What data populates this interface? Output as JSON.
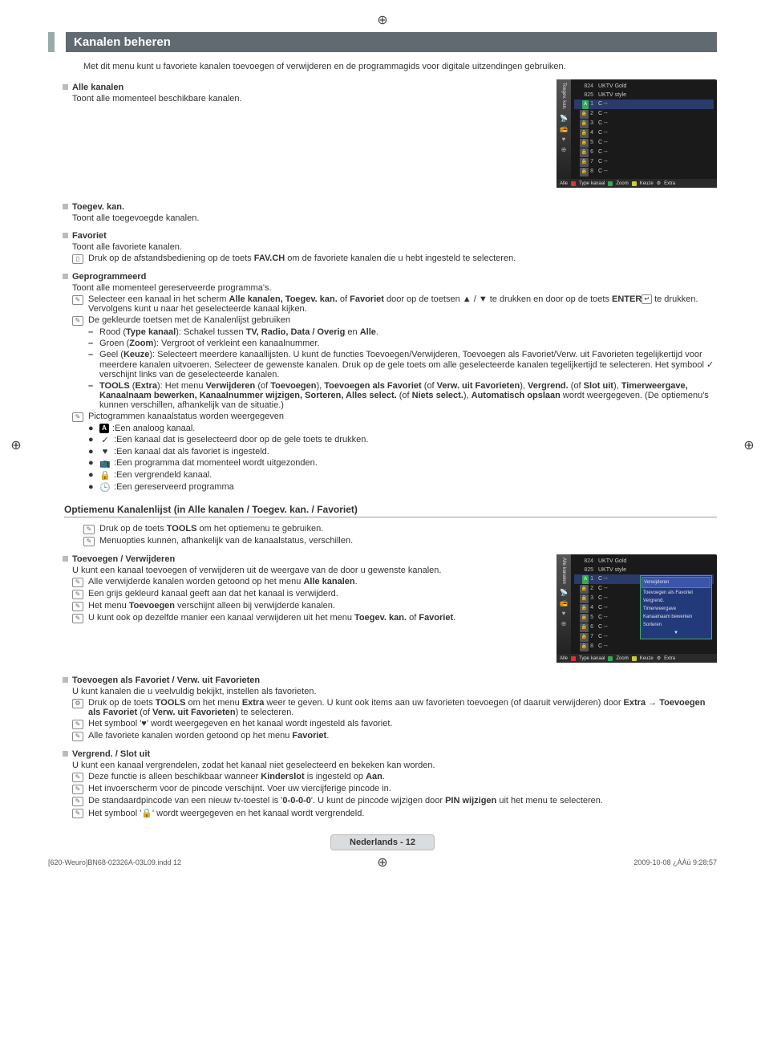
{
  "crosshair_glyph": "⊕",
  "heading": "Kanalen beheren",
  "intro": "Met dit menu kunt u favoriete kanalen toevoegen of verwijderen en de programmagids voor digitale uitzendingen gebruiken.",
  "sections": {
    "alle": {
      "title": "Alle kanalen",
      "body": "Toont alle momenteel beschikbare kanalen."
    },
    "toegev": {
      "title": "Toegev. kan.",
      "body": "Toont alle toegevoegde kanalen."
    },
    "favoriet": {
      "title": "Favoriet",
      "body": "Toont alle favoriete kanalen.",
      "remote_prefix": "Druk op de afstandsbediening op de toets ",
      "remote_bold": "FAV.CH",
      "remote_suffix": " om de favoriete kanalen die u hebt ingesteld te selecteren."
    },
    "geprog": {
      "title": "Geprogrammeerd",
      "body": "Toont alle momenteel gereserveerde programma's.",
      "note1_a": "Selecteer een kanaal in het scherm ",
      "note1_b": "Alle kanalen, Toegev. kan.",
      "note1_c": " of ",
      "note1_d": "Favoriet",
      "note1_e": " door op de toetsen ▲ / ▼ te drukken en door op de toets ",
      "note1_f": "ENTER",
      "note1_g": " te drukken. Vervolgens kunt u naar het geselecteerde kanaal kijken.",
      "note2": "De gekleurde toetsen met de Kanalenlijst gebruiken",
      "color": {
        "red_a": "Rood (",
        "red_b": "Type kanaal",
        "red_c": "): Schakel tussen ",
        "red_d": "TV, Radio, Data / Overig",
        "red_e": " en ",
        "red_f": "Alle",
        "red_g": ".",
        "green_a": "Groen (",
        "green_b": "Zoom",
        "green_c": "): Vergroot of verkleint een kanaalnummer.",
        "yellow_a": "Geel (",
        "yellow_b": "Keuze",
        "yellow_c": "): Selecteert meerdere kanaallijsten. U kunt de functies Toevoegen/Verwijderen, Toevoegen als Favoriet/Verw. uit Favorieten tegelijkertijd voor meerdere kanalen uitvoeren. Selecteer de gewenste kanalen. Druk op de gele toets om alle geselecteerde kanalen tegelijkertijd te selecteren. Het symbool ✓ verschijnt links van de geselecteerde kanalen.",
        "tools_a": "TOOLS",
        "tools_b": " (",
        "tools_c": "Extra",
        "tools_d": "): Het menu ",
        "tools_e": "Verwijderen",
        "tools_f": " (of ",
        "tools_g": "Toevoegen",
        "tools_h": "), ",
        "tools_i": "Toevoegen als Favoriet",
        "tools_j": " (of ",
        "tools_k": "Verw. uit Favorieten",
        "tools_l": "), ",
        "tools_m": "Vergrend.",
        "tools_n": " (of ",
        "tools_o": "Slot uit",
        "tools_p": "), ",
        "tools_q": "Timerweergave, Kanaalnaam bewerken, Kanaalnummer wijzigen, Sorteren, Alles select.",
        "tools_r": " (of ",
        "tools_s": "Niets select.",
        "tools_t": "), ",
        "tools_u": "Automatisch opslaan",
        "tools_v": " wordt weergegeven. (De optiemenu's kunnen verschillen, afhankelijk van de situatie.)"
      },
      "note3": "Pictogrammen kanaalstatus worden weergegeven",
      "icons": {
        "a": "Een analoog kanaal.",
        "check": "Een kanaal dat is geselecteerd door op de gele toets te drukken.",
        "heart": "Een kanaal dat als favoriet is ingesteld.",
        "broadcast": "Een programma dat momenteel wordt uitgezonden.",
        "lock": "Een vergrendeld kanaal.",
        "clock": "Een gereserveerd programma"
      }
    }
  },
  "option_heading": "Optiemenu Kanalenlijst (in Alle kanalen / Toegev. kan. / Favoriet)",
  "opt_notes": {
    "a_pre": "Druk op de toets ",
    "a_bold": "TOOLS",
    "a_post": " om het optiemenu te gebruiken.",
    "b": "Menuopties kunnen, afhankelijk van de kanaalstatus, verschillen."
  },
  "toevoegen_verw": {
    "title": "Toevoegen / Verwijderen",
    "body": "U kunt een kanaal toevoegen of verwijderen uit de weergave van de door u gewenste kanalen.",
    "n1_a": "Alle verwijderde kanalen worden getoond op het menu ",
    "n1_b": "Alle kanalen",
    "n1_c": ".",
    "n2": "Een grijs gekleurd kanaal geeft aan dat het kanaal is verwijderd.",
    "n3_a": "Het menu ",
    "n3_b": "Toevoegen",
    "n3_c": " verschijnt alleen bij verwijderde kanalen.",
    "n4_a": "U kunt ook op dezelfde manier een kanaal verwijderen uit het menu ",
    "n4_b": "Toegev. kan.",
    "n4_c": " of ",
    "n4_d": "Favoriet",
    "n4_e": "."
  },
  "fav": {
    "title": "Toevoegen als Favoriet / Verw. uit Favorieten",
    "body": "U kunt kanalen die u veelvuldig bekijkt, instellen als favorieten.",
    "t_a": "Druk op de toets ",
    "t_b": "TOOLS",
    "t_c": " om het menu ",
    "t_d": "Extra",
    "t_e": " weer te geven. U kunt ook items aan uw favorieten toevoegen (of daaruit verwijderen) door ",
    "t_f": "Extra",
    "t_g": " → ",
    "t_h": "Toevoegen als Favoriet",
    "t_i": " (of ",
    "t_j": "Verw. uit Favorieten",
    "t_k": ") te selecteren.",
    "n2": "Het symbool '♥' wordt weergegeven en het kanaal wordt ingesteld als favoriet.",
    "n3_a": "Alle favoriete kanalen worden getoond op het menu ",
    "n3_b": "Favoriet",
    "n3_c": "."
  },
  "vergrend": {
    "title": "Vergrend. / Slot uit",
    "body": "U kunt een kanaal vergrendelen, zodat het kanaal niet geselecteerd en bekeken kan worden.",
    "n1_a": "Deze functie is alleen beschikbaar wanneer ",
    "n1_b": "Kinderslot",
    "n1_c": " is ingesteld op ",
    "n1_d": "Aan",
    "n1_e": ".",
    "n2": "Het invoerscherm voor de pincode verschijnt. Voer uw viercijferige pincode in.",
    "n3_a": "De standaardpincode van een nieuw tv-toestel is '",
    "n3_b": "0-0-0-0",
    "n3_c": "'. U kunt de pincode wijzigen door ",
    "n3_d": "PIN wijzigen",
    "n3_e": " uit het menu te selecteren.",
    "n4": "Het symbool '🔒' wordt weergegeven en het kanaal wordt vergrendeld."
  },
  "tv": {
    "side_label_1": "Toegev. kan.",
    "side_label_2": "Alle kanalen",
    "all_label": "Alle",
    "rows_top": [
      {
        "num": "824",
        "name": "UKTV Gold"
      },
      {
        "num": "825",
        "name": "UKTV style"
      }
    ],
    "rows_main": [
      {
        "num": "1",
        "name": "C --",
        "a": true,
        "hl": true
      },
      {
        "num": "2",
        "name": "C --"
      },
      {
        "num": "3",
        "name": "C --"
      },
      {
        "num": "4",
        "name": "C --"
      },
      {
        "num": "5",
        "name": "C --"
      },
      {
        "num": "6",
        "name": "C --"
      },
      {
        "num": "7",
        "name": "C --"
      },
      {
        "num": "8",
        "name": "C --"
      }
    ],
    "footer": {
      "red": "Type kanaal",
      "green": "Zoom",
      "yellow": "Keuze",
      "tools": "Extra"
    },
    "colors": {
      "red": "#d33",
      "green": "#3a5",
      "yellow": "#cc3",
      "tools": "#888"
    },
    "context": [
      "Verwijderen",
      "Toevoegen als Favoriet",
      "Vergrend.",
      "Timerweergave",
      "Kanaalnaam bewerken",
      "Sorteren"
    ],
    "context_more": "▼"
  },
  "page_badge": "Nederlands - 12",
  "footer_left": "[620-Weuro]BN68-02326A-03L09.indd   12",
  "footer_right": "2009-10-08   ¿ÀÀü 9:28:57"
}
